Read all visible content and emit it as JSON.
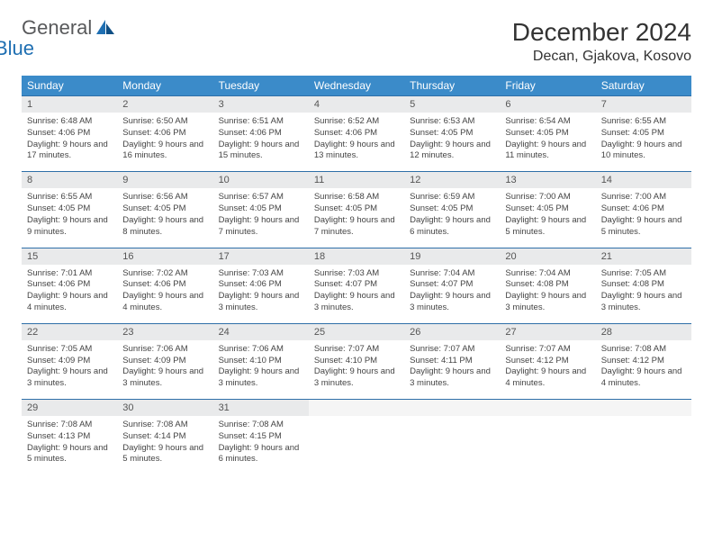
{
  "logo": {
    "word1": "General",
    "word2": "Blue"
  },
  "title": "December 2024",
  "location": "Decan, Gjakova, Kosovo",
  "colors": {
    "header_bg": "#3b8bc9",
    "daynum_bg": "#e9eaeb",
    "daynum_border": "#2e6fa8",
    "logo_gray": "#58595b",
    "logo_blue": "#1f6fb2"
  },
  "dow": [
    "Sunday",
    "Monday",
    "Tuesday",
    "Wednesday",
    "Thursday",
    "Friday",
    "Saturday"
  ],
  "weeks": [
    [
      {
        "n": "1",
        "sr": "6:48 AM",
        "ss": "4:06 PM",
        "dl": "9 hours and 17 minutes."
      },
      {
        "n": "2",
        "sr": "6:50 AM",
        "ss": "4:06 PM",
        "dl": "9 hours and 16 minutes."
      },
      {
        "n": "3",
        "sr": "6:51 AM",
        "ss": "4:06 PM",
        "dl": "9 hours and 15 minutes."
      },
      {
        "n": "4",
        "sr": "6:52 AM",
        "ss": "4:06 PM",
        "dl": "9 hours and 13 minutes."
      },
      {
        "n": "5",
        "sr": "6:53 AM",
        "ss": "4:05 PM",
        "dl": "9 hours and 12 minutes."
      },
      {
        "n": "6",
        "sr": "6:54 AM",
        "ss": "4:05 PM",
        "dl": "9 hours and 11 minutes."
      },
      {
        "n": "7",
        "sr": "6:55 AM",
        "ss": "4:05 PM",
        "dl": "9 hours and 10 minutes."
      }
    ],
    [
      {
        "n": "8",
        "sr": "6:55 AM",
        "ss": "4:05 PM",
        "dl": "9 hours and 9 minutes."
      },
      {
        "n": "9",
        "sr": "6:56 AM",
        "ss": "4:05 PM",
        "dl": "9 hours and 8 minutes."
      },
      {
        "n": "10",
        "sr": "6:57 AM",
        "ss": "4:05 PM",
        "dl": "9 hours and 7 minutes."
      },
      {
        "n": "11",
        "sr": "6:58 AM",
        "ss": "4:05 PM",
        "dl": "9 hours and 7 minutes."
      },
      {
        "n": "12",
        "sr": "6:59 AM",
        "ss": "4:05 PM",
        "dl": "9 hours and 6 minutes."
      },
      {
        "n": "13",
        "sr": "7:00 AM",
        "ss": "4:05 PM",
        "dl": "9 hours and 5 minutes."
      },
      {
        "n": "14",
        "sr": "7:00 AM",
        "ss": "4:06 PM",
        "dl": "9 hours and 5 minutes."
      }
    ],
    [
      {
        "n": "15",
        "sr": "7:01 AM",
        "ss": "4:06 PM",
        "dl": "9 hours and 4 minutes."
      },
      {
        "n": "16",
        "sr": "7:02 AM",
        "ss": "4:06 PM",
        "dl": "9 hours and 4 minutes."
      },
      {
        "n": "17",
        "sr": "7:03 AM",
        "ss": "4:06 PM",
        "dl": "9 hours and 3 minutes."
      },
      {
        "n": "18",
        "sr": "7:03 AM",
        "ss": "4:07 PM",
        "dl": "9 hours and 3 minutes."
      },
      {
        "n": "19",
        "sr": "7:04 AM",
        "ss": "4:07 PM",
        "dl": "9 hours and 3 minutes."
      },
      {
        "n": "20",
        "sr": "7:04 AM",
        "ss": "4:08 PM",
        "dl": "9 hours and 3 minutes."
      },
      {
        "n": "21",
        "sr": "7:05 AM",
        "ss": "4:08 PM",
        "dl": "9 hours and 3 minutes."
      }
    ],
    [
      {
        "n": "22",
        "sr": "7:05 AM",
        "ss": "4:09 PM",
        "dl": "9 hours and 3 minutes."
      },
      {
        "n": "23",
        "sr": "7:06 AM",
        "ss": "4:09 PM",
        "dl": "9 hours and 3 minutes."
      },
      {
        "n": "24",
        "sr": "7:06 AM",
        "ss": "4:10 PM",
        "dl": "9 hours and 3 minutes."
      },
      {
        "n": "25",
        "sr": "7:07 AM",
        "ss": "4:10 PM",
        "dl": "9 hours and 3 minutes."
      },
      {
        "n": "26",
        "sr": "7:07 AM",
        "ss": "4:11 PM",
        "dl": "9 hours and 3 minutes."
      },
      {
        "n": "27",
        "sr": "7:07 AM",
        "ss": "4:12 PM",
        "dl": "9 hours and 4 minutes."
      },
      {
        "n": "28",
        "sr": "7:08 AM",
        "ss": "4:12 PM",
        "dl": "9 hours and 4 minutes."
      }
    ],
    [
      {
        "n": "29",
        "sr": "7:08 AM",
        "ss": "4:13 PM",
        "dl": "9 hours and 5 minutes."
      },
      {
        "n": "30",
        "sr": "7:08 AM",
        "ss": "4:14 PM",
        "dl": "9 hours and 5 minutes."
      },
      {
        "n": "31",
        "sr": "7:08 AM",
        "ss": "4:15 PM",
        "dl": "9 hours and 6 minutes."
      },
      null,
      null,
      null,
      null
    ]
  ],
  "labels": {
    "sunrise": "Sunrise:",
    "sunset": "Sunset:",
    "daylight": "Daylight:"
  }
}
